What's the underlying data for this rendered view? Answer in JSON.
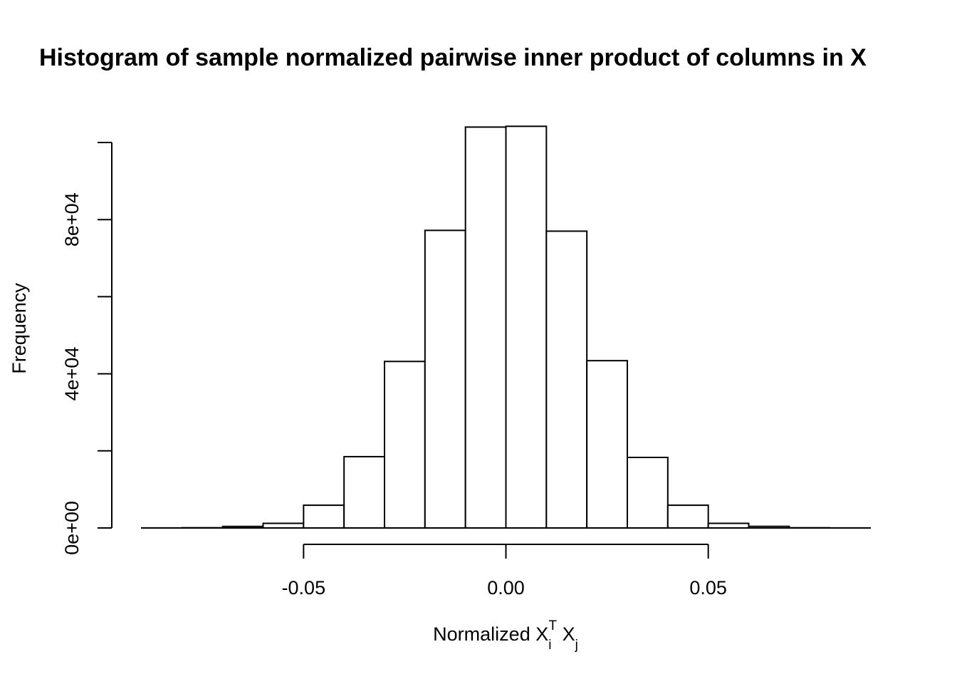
{
  "chart_data": {
    "type": "bar",
    "title": "Histogram of sample normalized pairwise inner product of columns in X",
    "xlabel": {
      "prefix": "Normalized X",
      "sub1": "i",
      "sup1": "T",
      "mid": " X",
      "sub2": "j"
    },
    "ylabel": "Frequency",
    "bin_edges": [
      -0.09,
      -0.08,
      -0.07,
      -0.06,
      -0.05,
      -0.04,
      -0.03,
      -0.02,
      -0.01,
      0.0,
      0.01,
      0.02,
      0.03,
      0.04,
      0.05,
      0.06,
      0.07,
      0.08,
      0.09
    ],
    "values": [
      5,
      60,
      400,
      1200,
      5900,
      18500,
      43200,
      77200,
      104000,
      104200,
      77000,
      43400,
      18300,
      5900,
      1200,
      420,
      55,
      5
    ],
    "x_ticks": [
      {
        "value": -0.05,
        "label": "-0.05"
      },
      {
        "value": 0.0,
        "label": "0.00"
      },
      {
        "value": 0.05,
        "label": "0.05"
      }
    ],
    "y_ticks": [
      {
        "value": 0,
        "label": "0e+00"
      },
      {
        "value": 20000,
        "label": ""
      },
      {
        "value": 40000,
        "label": "4e+04"
      },
      {
        "value": 60000,
        "label": ""
      },
      {
        "value": 80000,
        "label": "8e+04"
      },
      {
        "value": 100000,
        "label": ""
      }
    ],
    "xlim": [
      -0.09,
      0.09
    ],
    "ylim": [
      0,
      100000
    ],
    "grid": false,
    "legend": "none",
    "colors": {
      "bar_fill": "#ffffff",
      "bar_stroke": "#000000",
      "axis": "#000000"
    }
  }
}
